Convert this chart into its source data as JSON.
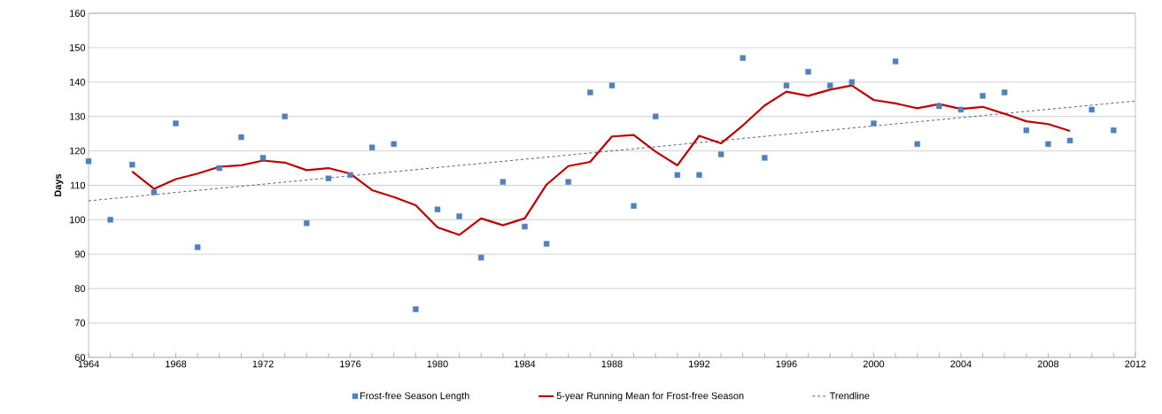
{
  "chart_data": {
    "type": "scatter",
    "ylabel": "Days",
    "x": [
      1964,
      1965,
      1966,
      1967,
      1968,
      1969,
      1970,
      1971,
      1972,
      1973,
      1974,
      1975,
      1976,
      1977,
      1978,
      1979,
      1980,
      1981,
      1982,
      1983,
      1984,
      1985,
      1986,
      1987,
      1988,
      1989,
      1990,
      1991,
      1992,
      1993,
      1994,
      1995,
      1996,
      1997,
      1998,
      1999,
      2000,
      2001,
      2002,
      2003,
      2004,
      2005,
      2006,
      2007,
      2008,
      2009,
      2010,
      2011
    ],
    "series": [
      {
        "name": "Frost-free Season Length",
        "color": "#4f81bd",
        "marker": "square",
        "values": [
          117,
          100,
          116,
          108,
          128,
          92,
          115,
          124,
          118,
          130,
          99,
          112,
          113,
          121,
          122,
          74,
          103,
          101,
          89,
          111,
          98,
          93,
          111,
          137,
          139,
          104,
          130,
          113,
          113,
          119,
          147,
          118,
          139,
          143,
          139,
          140,
          128,
          146,
          122,
          133,
          132,
          136,
          137,
          126,
          122,
          123,
          132,
          126
        ]
      },
      {
        "name": "5-year Running Mean for Frost-free Season",
        "type": "line",
        "color": "#c00000",
        "line_style": "solid",
        "x": [
          1966,
          1967,
          1968,
          1969,
          1970,
          1971,
          1972,
          1973,
          1974,
          1975,
          1976,
          1977,
          1978,
          1979,
          1980,
          1981,
          1982,
          1983,
          1984,
          1985,
          1986,
          1987,
          1988,
          1989,
          1990,
          1991,
          1992,
          1993,
          1994,
          1995,
          1996,
          1997,
          1998,
          1999,
          2000,
          2001,
          2002,
          2003,
          2004,
          2005,
          2006,
          2007,
          2008,
          2009
        ],
        "values": [
          114,
          109,
          111.8,
          113.4,
          115.4,
          115.8,
          117.2,
          116.6,
          114.4,
          115,
          113.4,
          108.6,
          106.6,
          104.2,
          97.8,
          95.6,
          100.4,
          98.4,
          100.4,
          110.2,
          115.6,
          116.8,
          124.2,
          124.6,
          119.8,
          115.8,
          124.4,
          122.2,
          127.4,
          133.2,
          137.2,
          136,
          137.8,
          139,
          134.8,
          133.8,
          132.4,
          133.6,
          132.2,
          132.8,
          130.8,
          128.6,
          127.8,
          125.8
        ]
      },
      {
        "name": "Trendline",
        "type": "line",
        "color": "#1f3864",
        "line_style": "dashed",
        "x": [
          1964,
          2012
        ],
        "values": [
          105.5,
          134.5
        ]
      }
    ],
    "xlim": [
      1964,
      2012
    ],
    "xticks": [
      1964,
      {
        "value": 1965,
        "label": null
      },
      {
        "value": 1966,
        "label": null
      },
      {
        "value": 1967,
        "label": null
      },
      1968,
      {
        "value": 1969,
        "label": null
      },
      {
        "value": 1970,
        "label": null
      },
      {
        "value": 1971,
        "label": null
      },
      1972,
      {
        "value": 1973,
        "label": null
      },
      {
        "value": 1974,
        "label": null
      },
      {
        "value": 1975,
        "label": null
      },
      1976,
      {
        "value": 1977,
        "label": null
      },
      {
        "value": 1978,
        "label": null
      },
      {
        "value": 1979,
        "label": null
      },
      1980,
      {
        "value": 1981,
        "label": null
      },
      {
        "value": 1982,
        "label": null
      },
      {
        "value": 1983,
        "label": null
      },
      1984,
      {
        "value": 1985,
        "label": null
      },
      {
        "value": 1986,
        "label": null
      },
      {
        "value": 1987,
        "label": null
      },
      1988,
      {
        "value": 1989,
        "label": null
      },
      {
        "value": 1990,
        "label": null
      },
      {
        "value": 1991,
        "label": null
      },
      1992,
      {
        "value": 1993,
        "label": null
      },
      {
        "value": 1994,
        "label": null
      },
      {
        "value": 1995,
        "label": null
      },
      1996,
      {
        "value": 1997,
        "label": null
      },
      {
        "value": 1998,
        "label": null
      },
      {
        "value": 1999,
        "label": null
      },
      2000,
      {
        "value": 2001,
        "label": null
      },
      {
        "value": 2002,
        "label": null
      },
      {
        "value": 2003,
        "label": null
      },
      2004,
      {
        "value": 2005,
        "label": null
      },
      {
        "value": 2006,
        "label": null
      },
      {
        "value": 2007,
        "label": null
      },
      2008,
      {
        "value": 2009,
        "label": null
      },
      {
        "value": 2010,
        "label": null
      },
      {
        "value": 2011,
        "label": null
      },
      2012
    ],
    "ylim": [
      60,
      160
    ],
    "yticks": [
      60,
      70,
      80,
      90,
      100,
      110,
      120,
      130,
      140,
      150,
      160
    ],
    "grid": "y",
    "legend": "bottom"
  }
}
